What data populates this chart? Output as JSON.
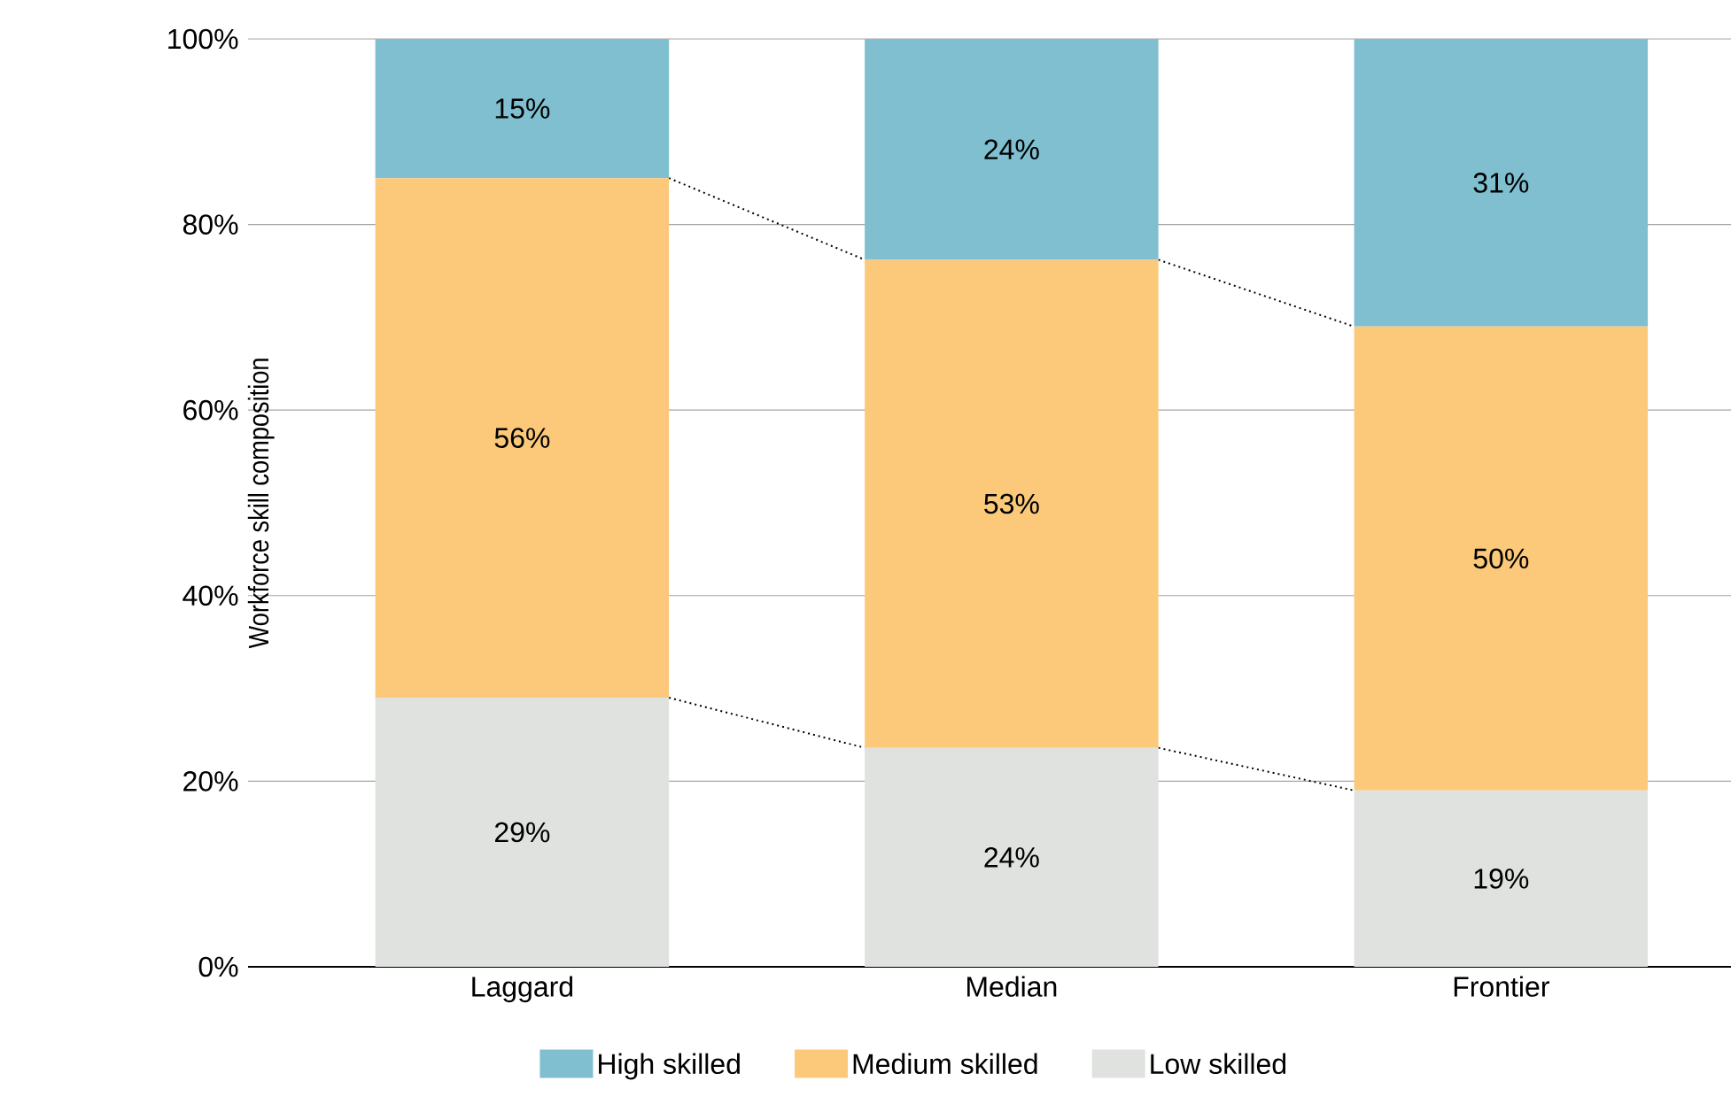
{
  "chart_data": {
    "type": "bar",
    "stacked": true,
    "ylabel": "Workforce skill composition",
    "categories": [
      "Laggard",
      "Median",
      "Frontier"
    ],
    "series": [
      {
        "name": "Low skilled",
        "color": "#dfe2df",
        "values": [
          29,
          23.6,
          19
        ],
        "value_labels": [
          "29%",
          "24%",
          "19%"
        ]
      },
      {
        "name": "Medium skilled",
        "color": "#fcc97a",
        "values": [
          56,
          52.6,
          50
        ],
        "value_labels": [
          "56%",
          "53%",
          "50%"
        ]
      },
      {
        "name": "High skilled",
        "color": "#7fbfcf",
        "values": [
          15,
          23.8,
          31
        ],
        "value_labels": [
          "15%",
          "24%",
          "31%"
        ]
      }
    ],
    "ylim": [
      0,
      100
    ],
    "yticks": [
      {
        "value": 0,
        "label": "0%"
      },
      {
        "value": 20,
        "label": "20%"
      },
      {
        "value": 40,
        "label": "40%"
      },
      {
        "value": 60,
        "label": "60%"
      },
      {
        "value": 80,
        "label": "80%"
      },
      {
        "value": 100,
        "label": "100%"
      }
    ],
    "grid": "y",
    "legend": "bottom"
  }
}
